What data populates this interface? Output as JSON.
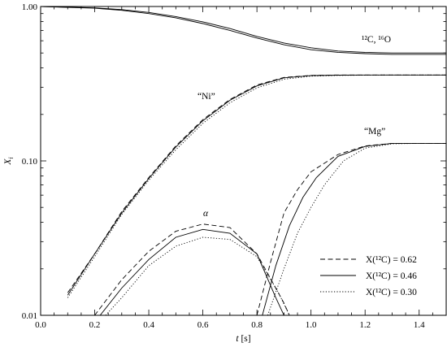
{
  "chart_data": {
    "type": "line",
    "xlabel": "t [s]",
    "ylabel": "X_i",
    "xlim": [
      0,
      1.5
    ],
    "ylim": [
      0.01,
      1.0
    ],
    "yscale": "log",
    "xticks": [
      "0.0",
      "0.2",
      "0.4",
      "0.6",
      "0.8",
      "1.0",
      "1.2",
      "1.4"
    ],
    "yticks": [
      "0.01",
      "0.10",
      "1.00"
    ],
    "legend_position": "bottom-right",
    "legend": [
      {
        "label": "X(¹²C) = 0.62",
        "style": "dashed"
      },
      {
        "label": "X(¹²C) = 0.46",
        "style": "solid"
      },
      {
        "label": "X(¹²C) = 0.30",
        "style": "dotted"
      }
    ],
    "annotations": [
      {
        "text": "¹²C, ¹⁶O",
        "series": "C,O"
      },
      {
        "text": "“Ni”",
        "series": "Ni"
      },
      {
        "text": "“Mg”",
        "series": "Mg"
      },
      {
        "text": "α",
        "series": "alpha"
      }
    ],
    "series": [
      {
        "group": "C,O",
        "style": "solid-a",
        "x": [
          0.0,
          0.2,
          0.3,
          0.4,
          0.5,
          0.6,
          0.7,
          0.8,
          0.9,
          1.0,
          1.1,
          1.2,
          1.3,
          1.4,
          1.5
        ],
        "y": [
          1.0,
          0.975,
          0.945,
          0.9,
          0.845,
          0.775,
          0.7,
          0.625,
          0.565,
          0.525,
          0.505,
          0.495,
          0.49,
          0.49,
          0.49
        ]
      },
      {
        "group": "C,O",
        "style": "solid-b",
        "x": [
          0.0,
          0.2,
          0.3,
          0.4,
          0.5,
          0.6,
          0.7,
          0.8,
          0.9,
          1.0,
          1.1,
          1.2,
          1.3,
          1.4,
          1.5
        ],
        "y": [
          1.0,
          0.98,
          0.955,
          0.915,
          0.86,
          0.795,
          0.72,
          0.64,
          0.58,
          0.54,
          0.515,
          0.505,
          0.5,
          0.5,
          0.5
        ]
      },
      {
        "group": "Ni",
        "style": "dashed",
        "x": [
          0.1,
          0.2,
          0.3,
          0.4,
          0.5,
          0.6,
          0.7,
          0.8,
          0.9,
          1.0,
          1.1,
          1.2,
          1.3,
          1.4,
          1.5
        ],
        "y": [
          0.014,
          0.025,
          0.047,
          0.078,
          0.125,
          0.185,
          0.25,
          0.31,
          0.347,
          0.358,
          0.36,
          0.36,
          0.36,
          0.36,
          0.36
        ]
      },
      {
        "group": "Ni",
        "style": "solid",
        "x": [
          0.1,
          0.2,
          0.3,
          0.4,
          0.5,
          0.6,
          0.7,
          0.8,
          0.9,
          1.0,
          1.1,
          1.2,
          1.3,
          1.4,
          1.5
        ],
        "y": [
          0.0135,
          0.025,
          0.046,
          0.077,
          0.123,
          0.182,
          0.247,
          0.306,
          0.345,
          0.357,
          0.359,
          0.36,
          0.36,
          0.36,
          0.36
        ]
      },
      {
        "group": "Ni",
        "style": "dotted",
        "x": [
          0.1,
          0.2,
          0.3,
          0.4,
          0.5,
          0.6,
          0.7,
          0.8,
          0.9,
          1.0,
          1.1,
          1.2,
          1.3,
          1.4,
          1.5
        ],
        "y": [
          0.013,
          0.024,
          0.045,
          0.075,
          0.118,
          0.175,
          0.238,
          0.297,
          0.338,
          0.354,
          0.358,
          0.359,
          0.36,
          0.36,
          0.36
        ]
      },
      {
        "group": "alpha",
        "style": "dashed",
        "x": [
          0.2,
          0.3,
          0.4,
          0.5,
          0.6,
          0.7,
          0.8,
          0.9,
          0.92
        ],
        "y": [
          0.01,
          0.017,
          0.026,
          0.035,
          0.039,
          0.037,
          0.025,
          0.012,
          0.01
        ]
      },
      {
        "group": "alpha",
        "style": "solid",
        "x": [
          0.22,
          0.3,
          0.4,
          0.5,
          0.6,
          0.7,
          0.8,
          0.87,
          0.9
        ],
        "y": [
          0.01,
          0.015,
          0.023,
          0.032,
          0.036,
          0.034,
          0.025,
          0.013,
          0.01
        ]
      },
      {
        "group": "alpha",
        "style": "dotted",
        "x": [
          0.24,
          0.3,
          0.4,
          0.5,
          0.6,
          0.7,
          0.8,
          0.88,
          0.92
        ],
        "y": [
          0.01,
          0.013,
          0.021,
          0.028,
          0.032,
          0.031,
          0.024,
          0.014,
          0.01
        ]
      },
      {
        "group": "Mg",
        "style": "dashed",
        "x": [
          0.8,
          0.85,
          0.9,
          0.95,
          1.0,
          1.1,
          1.2,
          1.3,
          1.4,
          1.5
        ],
        "y": [
          0.01,
          0.022,
          0.046,
          0.065,
          0.085,
          0.11,
          0.125,
          0.13,
          0.13,
          0.13
        ]
      },
      {
        "group": "Mg",
        "style": "solid",
        "x": [
          0.82,
          0.87,
          0.92,
          0.97,
          1.02,
          1.1,
          1.2,
          1.3,
          1.4,
          1.5
        ],
        "y": [
          0.01,
          0.021,
          0.038,
          0.058,
          0.078,
          0.107,
          0.124,
          0.13,
          0.13,
          0.13
        ]
      },
      {
        "group": "Mg",
        "style": "dotted",
        "x": [
          0.84,
          0.9,
          0.95,
          1.0,
          1.05,
          1.12,
          1.2,
          1.3,
          1.4,
          1.5
        ],
        "y": [
          0.01,
          0.02,
          0.034,
          0.05,
          0.07,
          0.1,
          0.121,
          0.129,
          0.13,
          0.13
        ]
      }
    ]
  }
}
